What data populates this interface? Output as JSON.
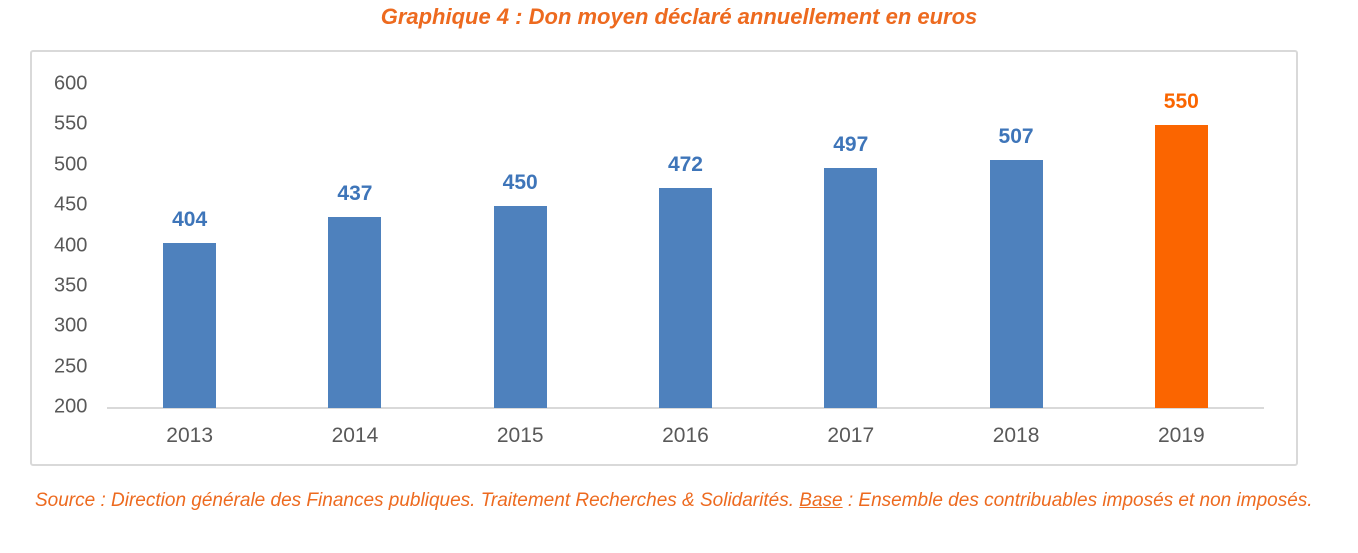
{
  "chart_data": {
    "type": "bar",
    "title": "Graphique 4 : Don moyen déclaré annuellement en euros",
    "categories": [
      "2013",
      "2014",
      "2015",
      "2016",
      "2017",
      "2018",
      "2019"
    ],
    "values": [
      404,
      437,
      450,
      472,
      497,
      507,
      550
    ],
    "highlight_index": 6,
    "ylim": [
      200,
      600
    ],
    "yticks": [
      600,
      550,
      500,
      450,
      400,
      350,
      300,
      250,
      200
    ],
    "grid": false,
    "legend": "none",
    "xlabel": "",
    "ylabel": ""
  },
  "colors": {
    "title_orange": "#ED6A1F",
    "source_orange": "#ED6A1F",
    "bar_blue": "#4E81BD",
    "bar_orange": "#FB6500",
    "value_label_blue": "#3E75B9",
    "value_label_orange": "#FA6500",
    "axis_text_gray": "#595959",
    "frame_gray": "#D9D9D9"
  },
  "source_note": {
    "prefix": "Source : Direction générale des Finances publiques. Traitement Recherches & Solidarités. ",
    "underlined": "Base",
    "suffix": " : Ensemble des contribuables imposés et non imposés."
  }
}
